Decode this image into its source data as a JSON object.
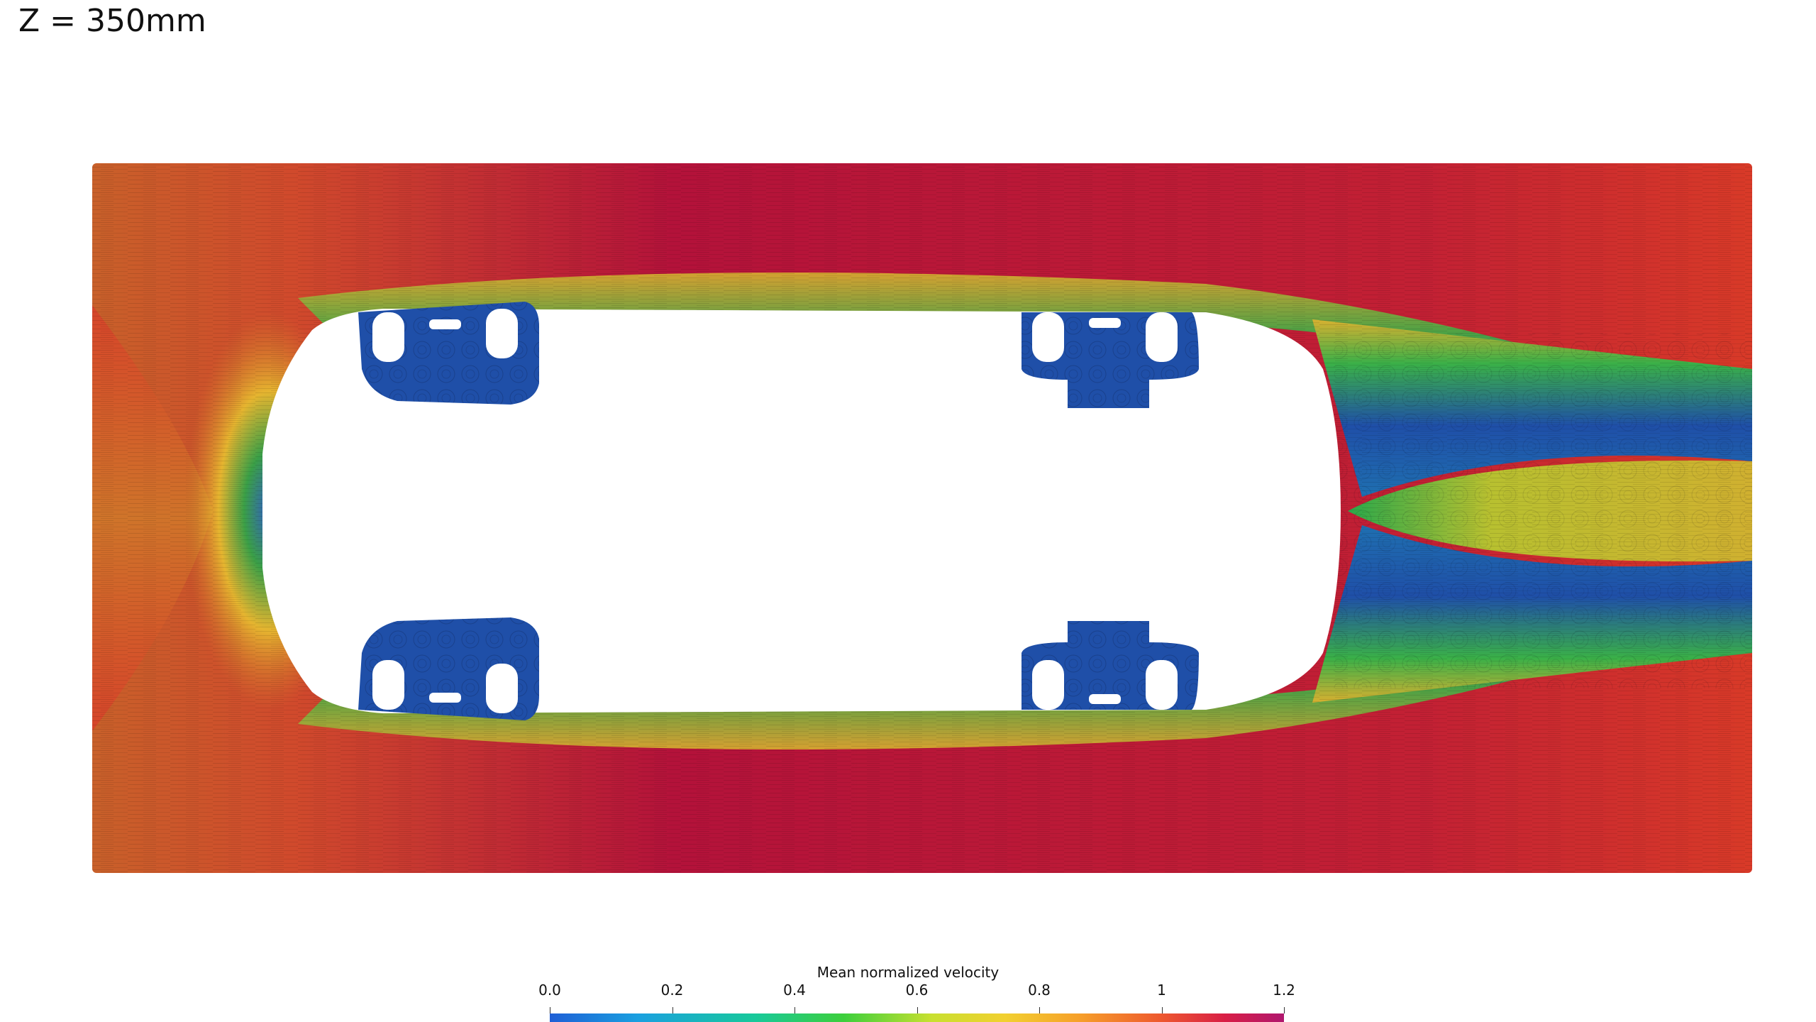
{
  "title": "Z = 350mm",
  "colorbar": {
    "title": "Mean normalized velocity",
    "tick_labels": [
      "0.0",
      "0.2",
      "0.4",
      "0.6",
      "0.8",
      "1",
      "1.2"
    ],
    "range": [
      0,
      1.2
    ],
    "colormap": [
      "#1f5fd6",
      "#1aa8d8",
      "#18c99a",
      "#3ccf3c",
      "#a8d830",
      "#f2d030",
      "#f6a02a",
      "#ee5a2e",
      "#d81e46",
      "#b0176e"
    ]
  },
  "field_colors": {
    "freestream_fast": "#b3123a",
    "freestream_mid": "#d8382a",
    "inflow": "#c8602a",
    "stagnation": "#e8b030",
    "wake_low": "#1f4fa8",
    "wake_mid": "#2aa84a",
    "wake_core": "#c8c030",
    "body": "#ffffff"
  }
}
